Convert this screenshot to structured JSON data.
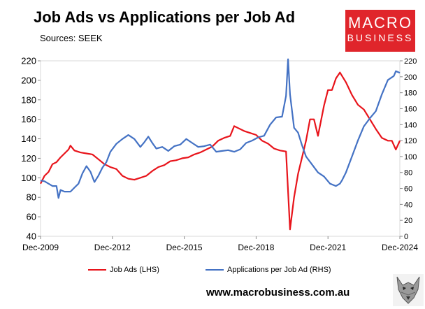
{
  "title": "Job Ads vs Applications per Job Ad",
  "subtitle": "Sources: SEEK",
  "logo": {
    "line1": "MACRO",
    "line2": "BUSINESS",
    "color": "#e0252b"
  },
  "website": "www.macrobusiness.com.au",
  "chart_data": {
    "type": "line",
    "x_start": "Dec-2009",
    "x_end": "Dec-2024",
    "x_tick_labels": [
      "Dec-2009",
      "Dec-2012",
      "Dec-2015",
      "Dec-2018",
      "Dec-2021",
      "Dec-2024"
    ],
    "y_left": {
      "label": "",
      "ylim": [
        40,
        220
      ],
      "ticks": [
        40,
        60,
        80,
        100,
        120,
        140,
        160,
        180,
        200,
        220
      ]
    },
    "y_right": {
      "label": "",
      "ylim": [
        0,
        220
      ],
      "ticks": [
        0,
        20,
        40,
        60,
        80,
        100,
        120,
        140,
        160,
        180,
        200,
        220
      ]
    },
    "grid": false,
    "legend_position": "bottom",
    "series": [
      {
        "name": "Job Ads (LHS)",
        "axis": "left",
        "color": "#e8141b",
        "points": [
          [
            "2009-12",
            94
          ],
          [
            "2010-02",
            102
          ],
          [
            "2010-04",
            106
          ],
          [
            "2010-06",
            114
          ],
          [
            "2010-08",
            116
          ],
          [
            "2010-10",
            121
          ],
          [
            "2010-12",
            125
          ],
          [
            "2011-02",
            129
          ],
          [
            "2011-03",
            133
          ],
          [
            "2011-05",
            128
          ],
          [
            "2011-08",
            126
          ],
          [
            "2011-11",
            125
          ],
          [
            "2012-02",
            124
          ],
          [
            "2012-05",
            119
          ],
          [
            "2012-08",
            114
          ],
          [
            "2012-11",
            111
          ],
          [
            "2013-02",
            109
          ],
          [
            "2013-05",
            102
          ],
          [
            "2013-08",
            99
          ],
          [
            "2013-11",
            98
          ],
          [
            "2014-02",
            100
          ],
          [
            "2014-05",
            102
          ],
          [
            "2014-08",
            107
          ],
          [
            "2014-11",
            111
          ],
          [
            "2015-02",
            113
          ],
          [
            "2015-05",
            117
          ],
          [
            "2015-08",
            118
          ],
          [
            "2015-11",
            120
          ],
          [
            "2016-02",
            121
          ],
          [
            "2016-05",
            124
          ],
          [
            "2016-08",
            126
          ],
          [
            "2016-11",
            129
          ],
          [
            "2017-02",
            132
          ],
          [
            "2017-05",
            138
          ],
          [
            "2017-08",
            141
          ],
          [
            "2017-11",
            143
          ],
          [
            "2018-01",
            153
          ],
          [
            "2018-03",
            151
          ],
          [
            "2018-06",
            148
          ],
          [
            "2018-09",
            146
          ],
          [
            "2018-12",
            144
          ],
          [
            "2019-03",
            138
          ],
          [
            "2019-06",
            135
          ],
          [
            "2019-09",
            130
          ],
          [
            "2019-12",
            128
          ],
          [
            "2020-03",
            127
          ],
          [
            "2020-05",
            47
          ],
          [
            "2020-07",
            80
          ],
          [
            "2020-09",
            104
          ],
          [
            "2020-11",
            121
          ],
          [
            "2021-01",
            138
          ],
          [
            "2021-03",
            160
          ],
          [
            "2021-05",
            160
          ],
          [
            "2021-07",
            143
          ],
          [
            "2021-10",
            174
          ],
          [
            "2021-12",
            190
          ],
          [
            "2022-02",
            190
          ],
          [
            "2022-04",
            202
          ],
          [
            "2022-06",
            208
          ],
          [
            "2022-09",
            198
          ],
          [
            "2022-12",
            185
          ],
          [
            "2023-03",
            175
          ],
          [
            "2023-06",
            170
          ],
          [
            "2023-09",
            160
          ],
          [
            "2023-12",
            150
          ],
          [
            "2024-03",
            141
          ],
          [
            "2024-06",
            138
          ],
          [
            "2024-08",
            138
          ],
          [
            "2024-10",
            129
          ],
          [
            "2024-12",
            138
          ]
        ]
      },
      {
        "name": "Applications per Job Ad (RHS)",
        "axis": "right",
        "color": "#4472c4",
        "points": [
          [
            "2009-12",
            70
          ],
          [
            "2010-02",
            69
          ],
          [
            "2010-04",
            66
          ],
          [
            "2010-06",
            63
          ],
          [
            "2010-08",
            63
          ],
          [
            "2010-09",
            48
          ],
          [
            "2010-10",
            58
          ],
          [
            "2010-12",
            56
          ],
          [
            "2011-03",
            56
          ],
          [
            "2011-05",
            61
          ],
          [
            "2011-07",
            66
          ],
          [
            "2011-09",
            79
          ],
          [
            "2011-11",
            88
          ],
          [
            "2012-01",
            81
          ],
          [
            "2012-03",
            68
          ],
          [
            "2012-05",
            76
          ],
          [
            "2012-07",
            86
          ],
          [
            "2012-09",
            93
          ],
          [
            "2012-11",
            106
          ],
          [
            "2013-02",
            116
          ],
          [
            "2013-05",
            122
          ],
          [
            "2013-08",
            127
          ],
          [
            "2013-11",
            122
          ],
          [
            "2014-02",
            112
          ],
          [
            "2014-04",
            118
          ],
          [
            "2014-06",
            125
          ],
          [
            "2014-08",
            117
          ],
          [
            "2014-10",
            110
          ],
          [
            "2015-01",
            112
          ],
          [
            "2015-04",
            107
          ],
          [
            "2015-07",
            113
          ],
          [
            "2015-10",
            115
          ],
          [
            "2016-01",
            122
          ],
          [
            "2016-04",
            117
          ],
          [
            "2016-07",
            112
          ],
          [
            "2016-10",
            113
          ],
          [
            "2017-01",
            115
          ],
          [
            "2017-04",
            106
          ],
          [
            "2017-07",
            107
          ],
          [
            "2017-10",
            108
          ],
          [
            "2018-01",
            106
          ],
          [
            "2018-04",
            109
          ],
          [
            "2018-07",
            117
          ],
          [
            "2018-10",
            120
          ],
          [
            "2019-01",
            124
          ],
          [
            "2019-04",
            126
          ],
          [
            "2019-07",
            140
          ],
          [
            "2019-10",
            149
          ],
          [
            "2020-01",
            150
          ],
          [
            "2020-03",
            176
          ],
          [
            "2020-04",
            222
          ],
          [
            "2020-05",
            178
          ],
          [
            "2020-07",
            136
          ],
          [
            "2020-09",
            130
          ],
          [
            "2020-11",
            114
          ],
          [
            "2021-01",
            100
          ],
          [
            "2021-04",
            90
          ],
          [
            "2021-07",
            80
          ],
          [
            "2021-10",
            75
          ],
          [
            "2022-01",
            66
          ],
          [
            "2022-04",
            63
          ],
          [
            "2022-06",
            66
          ],
          [
            "2022-07",
            70
          ],
          [
            "2022-09",
            80
          ],
          [
            "2022-12",
            100
          ],
          [
            "2023-03",
            120
          ],
          [
            "2023-06",
            138
          ],
          [
            "2023-09",
            148
          ],
          [
            "2023-12",
            157
          ],
          [
            "2024-03",
            178
          ],
          [
            "2024-06",
            196
          ],
          [
            "2024-09",
            201
          ],
          [
            "2024-10",
            207
          ],
          [
            "2024-12",
            205
          ]
        ]
      }
    ]
  }
}
